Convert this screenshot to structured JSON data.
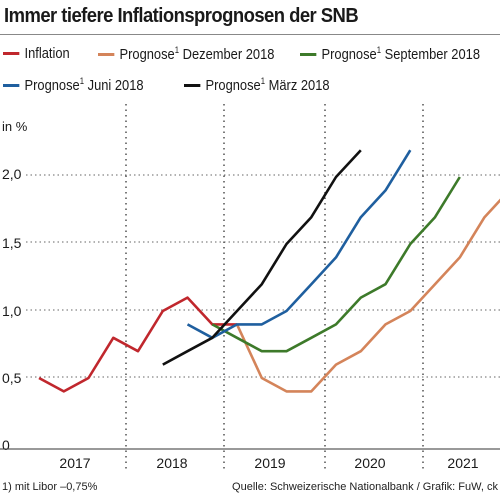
{
  "chart_data": {
    "type": "line",
    "title": "Immer tiefere Inflationsprognosen der SNB",
    "ylabel": "in %",
    "ylim": [
      0,
      2.2
    ],
    "yticks": [
      "0",
      "0,5",
      "1,0",
      "1,5",
      "2,0"
    ],
    "ytick_values": [
      0,
      0.5,
      1.0,
      1.5,
      2.0
    ],
    "xlabels": [
      "2017",
      "2018",
      "2019",
      "2020",
      "2021"
    ],
    "xlim": [
      "2016-Q4",
      "2021-Q4"
    ],
    "grid": "horizontal dotted, vertical dotted year separators",
    "legend_position": "top",
    "series": [
      {
        "name": "Inflation",
        "color": "#c0272d",
        "x": [
          "2016-Q4",
          "2017-Q1",
          "2017-Q2",
          "2017-Q3",
          "2017-Q4",
          "2018-Q1",
          "2018-Q2",
          "2018-Q3",
          "2018-Q4"
        ],
        "values": [
          0.5,
          0.4,
          0.5,
          0.8,
          0.7,
          1.0,
          1.1,
          0.9,
          0.9
        ]
      },
      {
        "name": "Prognose¹ Dezember 2018",
        "color": "#d4845a",
        "x": [
          "2018-Q4",
          "2019-Q1",
          "2019-Q2",
          "2019-Q3",
          "2019-Q4",
          "2020-Q1",
          "2020-Q2",
          "2020-Q3",
          "2020-Q4",
          "2021-Q1",
          "2021-Q2",
          "2021-Q3"
        ],
        "values": [
          0.9,
          0.5,
          0.4,
          0.4,
          0.6,
          0.7,
          0.9,
          1.0,
          1.2,
          1.4,
          1.7,
          1.9
        ]
      },
      {
        "name": "Prognose¹ September 2018",
        "color": "#3d7a2a",
        "x": [
          "2018-Q3",
          "2018-Q4",
          "2019-Q1",
          "2019-Q2",
          "2019-Q3",
          "2019-Q4",
          "2020-Q1",
          "2020-Q2",
          "2020-Q3",
          "2020-Q4",
          "2021-Q1",
          "2021-Q2"
        ],
        "values": [
          0.9,
          0.8,
          0.7,
          0.7,
          0.8,
          0.9,
          1.1,
          1.2,
          1.5,
          1.7,
          2.0,
          null
        ]
      },
      {
        "name": "Prognose¹ Juni 2018",
        "color": "#1f5f9f",
        "x": [
          "2018-Q2",
          "2018-Q3",
          "2018-Q4",
          "2019-Q1",
          "2019-Q2",
          "2019-Q3",
          "2019-Q4",
          "2020-Q1",
          "2020-Q2",
          "2020-Q3",
          "2020-Q4",
          "2021-Q1"
        ],
        "values": [
          0.9,
          0.8,
          0.9,
          0.9,
          1.0,
          1.2,
          1.4,
          1.7,
          1.9,
          2.2,
          null,
          null
        ]
      },
      {
        "name": "Prognose¹ März 2018",
        "color": "#111111",
        "x": [
          "2018-Q1",
          "2018-Q2",
          "2018-Q3",
          "2018-Q4",
          "2019-Q1",
          "2019-Q2",
          "2019-Q3",
          "2019-Q4",
          "2020-Q1",
          "2020-Q2",
          "2020-Q3",
          "2020-Q4"
        ],
        "values": [
          0.6,
          0.7,
          0.8,
          1.0,
          1.2,
          1.5,
          1.7,
          2.0,
          2.2,
          null,
          null,
          null
        ]
      }
    ]
  },
  "legend": [
    {
      "label": "Inflation",
      "color": "#c0272d"
    },
    {
      "label": "Prognose",
      "sup": "1",
      "rest": " Dezember 2018",
      "color": "#d4845a"
    },
    {
      "label": "Prognose",
      "sup": "1",
      "rest": " September 2018",
      "color": "#3d7a2a"
    },
    {
      "label": "Prognose",
      "sup": "1",
      "rest": " Juni 2018",
      "color": "#1f5f9f"
    },
    {
      "label": "Prognose",
      "sup": "1",
      "rest": " März 2018",
      "color": "#111111"
    }
  ],
  "footnote": "1) mit Libor –0,75%",
  "source": "Quelle: Schweizerische Nationalbank / Grafik: FuW, ck"
}
